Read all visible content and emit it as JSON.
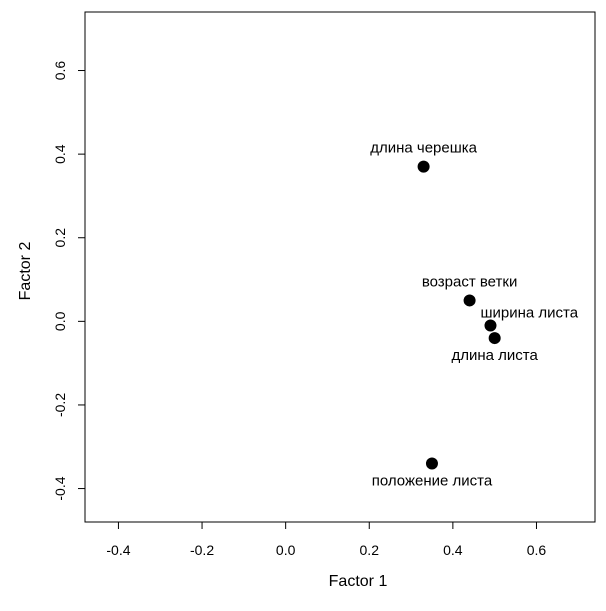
{
  "chart_data": {
    "type": "scatter",
    "title": "",
    "xlabel": "Factor 1",
    "ylabel": "Factor 2",
    "xlim": [
      -0.48,
      0.74
    ],
    "ylim": [
      -0.48,
      0.74
    ],
    "x_ticks": [
      -0.4,
      -0.2,
      0.0,
      0.2,
      0.4,
      0.6
    ],
    "x_tick_labels": [
      "-0.4",
      "-0.2",
      "0.0",
      "0.2",
      "0.4",
      "0.6"
    ],
    "y_ticks": [
      -0.4,
      -0.2,
      0.0,
      0.2,
      0.4,
      0.6
    ],
    "y_tick_labels": [
      "-0.4",
      "-0.2",
      "0.0",
      "0.2",
      "0.4",
      "0.6"
    ],
    "grid": false,
    "legend": "none",
    "point_color": "#000000",
    "points": [
      {
        "label": "длина черешка",
        "x": 0.33,
        "y": 0.37,
        "label_position": "above"
      },
      {
        "label": "возраст ветки",
        "x": 0.44,
        "y": 0.05,
        "label_position": "above"
      },
      {
        "label": "ширина листа",
        "x": 0.49,
        "y": -0.01,
        "label_position": "right"
      },
      {
        "label": "длина листа",
        "x": 0.5,
        "y": -0.04,
        "label_position": "below"
      },
      {
        "label": "положение листа",
        "x": 0.35,
        "y": -0.34,
        "label_position": "below"
      }
    ]
  }
}
